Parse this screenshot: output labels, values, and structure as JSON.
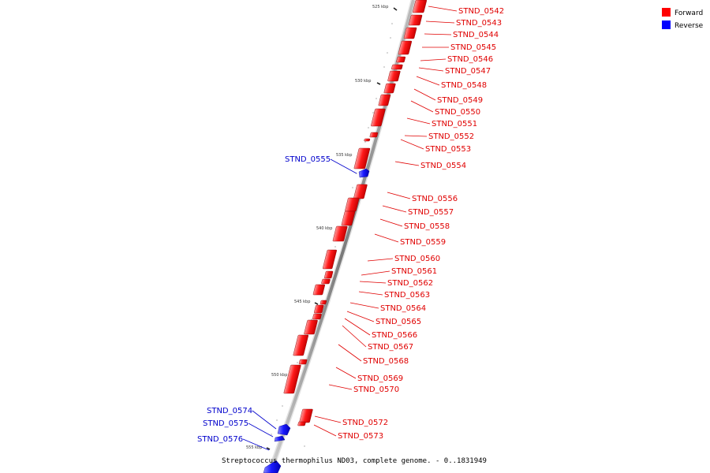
{
  "caption": "Streptococcus thermophilus ND03, complete genome. - 0..1831949",
  "legend": [
    {
      "label": "Forward",
      "color": "#ff0000"
    },
    {
      "label": "Reverse",
      "color": "#0000ff"
    }
  ],
  "ticks": [
    "525 kbp",
    "530 kbp",
    "535 kbp",
    "540 kbp",
    "545 kbp",
    "550 kbp",
    "555 kbp"
  ],
  "genes": [
    {
      "name": "STND_0542",
      "strand": "forward"
    },
    {
      "name": "STND_0543",
      "strand": "forward"
    },
    {
      "name": "STND_0544",
      "strand": "forward"
    },
    {
      "name": "STND_0545",
      "strand": "forward"
    },
    {
      "name": "STND_0546",
      "strand": "forward"
    },
    {
      "name": "STND_0547",
      "strand": "forward"
    },
    {
      "name": "STND_0548",
      "strand": "forward"
    },
    {
      "name": "STND_0549",
      "strand": "forward"
    },
    {
      "name": "STND_0550",
      "strand": "forward"
    },
    {
      "name": "STND_0551",
      "strand": "forward"
    },
    {
      "name": "STND_0552",
      "strand": "forward"
    },
    {
      "name": "STND_0553",
      "strand": "forward"
    },
    {
      "name": "STND_0554",
      "strand": "forward"
    },
    {
      "name": "STND_0555",
      "strand": "reverse"
    },
    {
      "name": "STND_0556",
      "strand": "forward"
    },
    {
      "name": "STND_0557",
      "strand": "forward"
    },
    {
      "name": "STND_0558",
      "strand": "forward"
    },
    {
      "name": "STND_0559",
      "strand": "forward"
    },
    {
      "name": "STND_0560",
      "strand": "forward"
    },
    {
      "name": "STND_0561",
      "strand": "forward"
    },
    {
      "name": "STND_0562",
      "strand": "forward"
    },
    {
      "name": "STND_0563",
      "strand": "forward"
    },
    {
      "name": "STND_0564",
      "strand": "forward"
    },
    {
      "name": "STND_0565",
      "strand": "forward"
    },
    {
      "name": "STND_0566",
      "strand": "forward"
    },
    {
      "name": "STND_0567",
      "strand": "forward"
    },
    {
      "name": "STND_0568",
      "strand": "forward"
    },
    {
      "name": "STND_0569",
      "strand": "forward"
    },
    {
      "name": "STND_0570",
      "strand": "forward"
    },
    {
      "name": "STND_0572",
      "strand": "forward"
    },
    {
      "name": "STND_0573",
      "strand": "forward"
    },
    {
      "name": "STND_0574",
      "strand": "reverse"
    },
    {
      "name": "STND_0575",
      "strand": "reverse"
    },
    {
      "name": "STND_0576",
      "strand": "reverse"
    }
  ]
}
